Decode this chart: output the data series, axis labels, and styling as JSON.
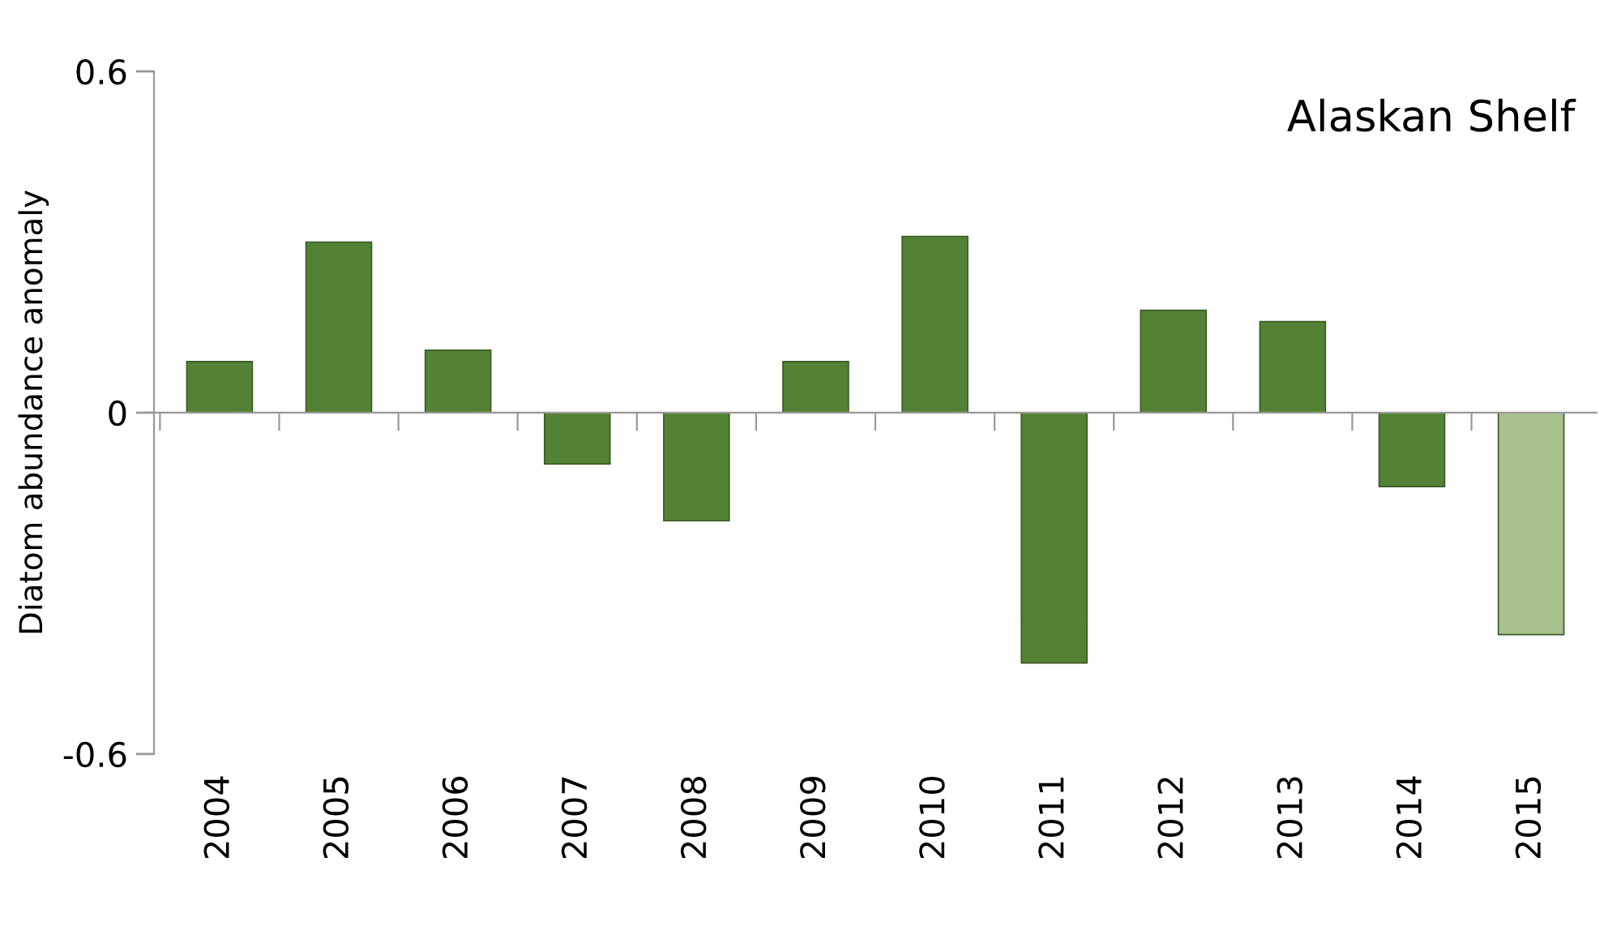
{
  "chart_data": {
    "type": "bar",
    "title": "Alaskan Shelf",
    "ylabel": "Diatom abundance anomaly",
    "categories": [
      "2004",
      "2005",
      "2006",
      "2007",
      "2008",
      "2009",
      "2010",
      "2011",
      "2012",
      "2013",
      "2014",
      "2015"
    ],
    "values": [
      0.09,
      0.3,
      0.11,
      -0.09,
      -0.19,
      0.09,
      0.31,
      -0.44,
      0.18,
      0.16,
      -0.13,
      -0.39
    ],
    "colors": [
      "#548235",
      "#548235",
      "#548235",
      "#548235",
      "#548235",
      "#548235",
      "#548235",
      "#548235",
      "#548235",
      "#548235",
      "#548235",
      "#a9c18f"
    ],
    "ylim": [
      -0.6,
      0.6
    ],
    "yticks": [
      {
        "value": -0.6,
        "label": "-0.6"
      },
      0,
      0.6
    ],
    "legend": false
  }
}
